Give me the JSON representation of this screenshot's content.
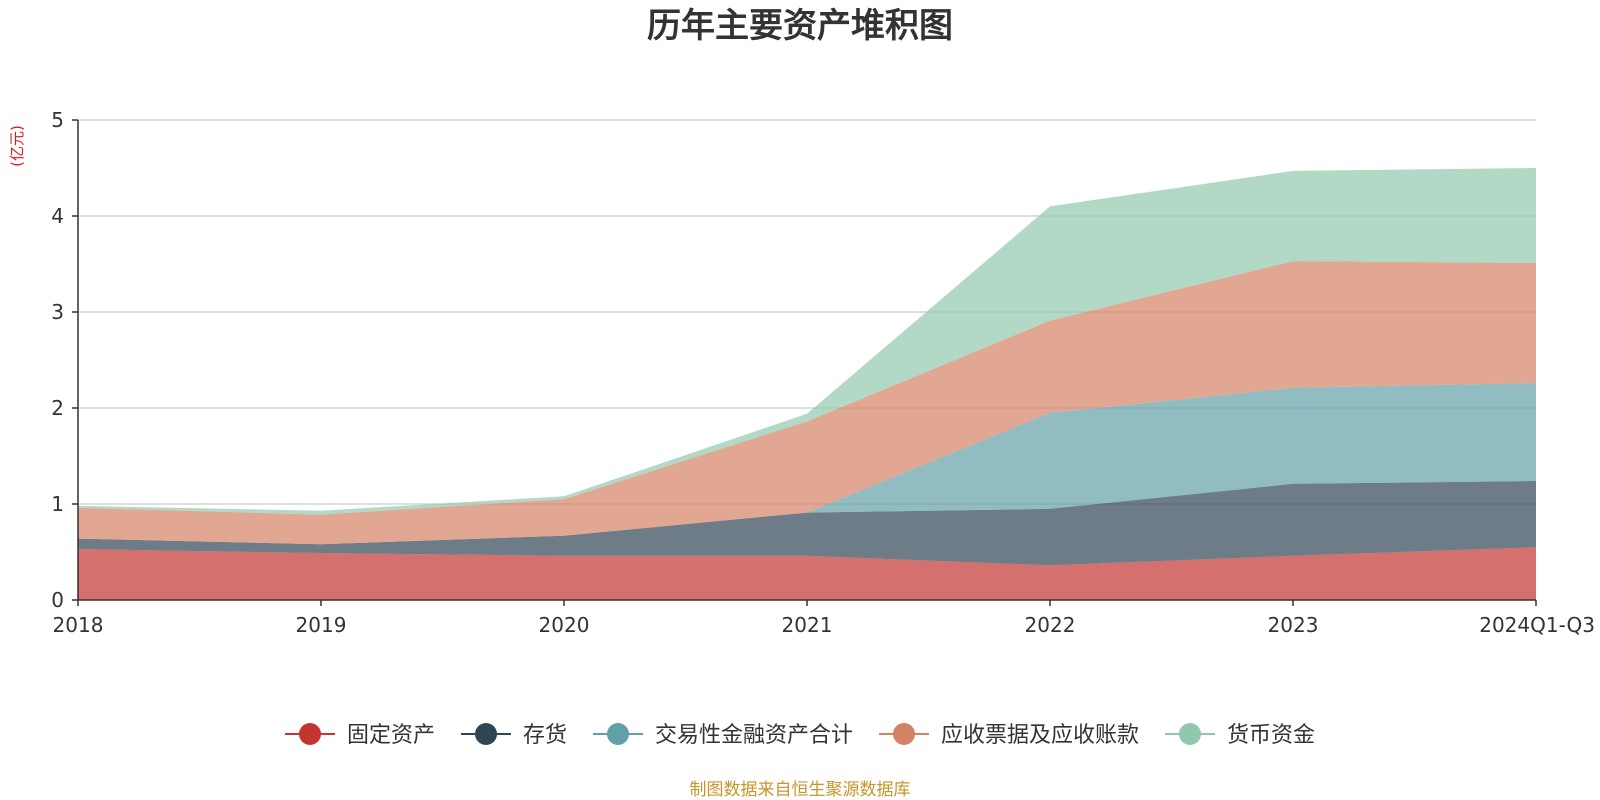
{
  "chart_data": {
    "type": "area",
    "stacked": true,
    "title": "历年主要资产堆积图",
    "ylabel": "(亿元)",
    "categories": [
      "2018",
      "2019",
      "2020",
      "2021",
      "2022",
      "2023",
      "2024Q1-Q3"
    ],
    "ylim": [
      0,
      5
    ],
    "yticks": [
      0,
      1,
      2,
      3,
      4,
      5
    ],
    "grid": true,
    "legend_position": "bottom",
    "series": [
      {
        "name": "固定资产",
        "color": "#c23531",
        "values": [
          0.53,
          0.49,
          0.46,
          0.46,
          0.36,
          0.46,
          0.55
        ]
      },
      {
        "name": "存货",
        "color": "#2f4554",
        "values": [
          0.11,
          0.09,
          0.21,
          0.45,
          0.59,
          0.75,
          0.69
        ]
      },
      {
        "name": "交易性金融资产合计",
        "color": "#61a0a8",
        "values": [
          0.0,
          0.0,
          0.0,
          0.0,
          1.0,
          1.0,
          1.02
        ]
      },
      {
        "name": "应收票据及应收账款",
        "color": "#d48265",
        "values": [
          0.32,
          0.31,
          0.38,
          0.95,
          0.96,
          1.32,
          1.25
        ]
      },
      {
        "name": "货币资金",
        "color": "#91c7ae",
        "values": [
          0.02,
          0.04,
          0.03,
          0.08,
          1.19,
          0.94,
          0.99
        ]
      }
    ],
    "source": "制图数据来自恒生聚源数据库"
  }
}
